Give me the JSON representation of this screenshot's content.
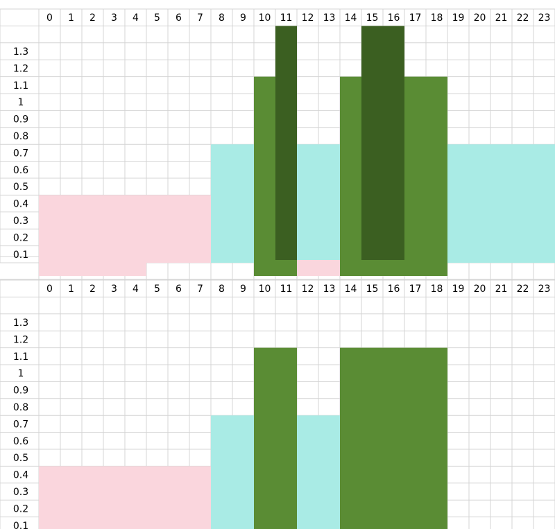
{
  "colors": {
    "pink": "#fad6dd",
    "cyan": "#a9ebe5",
    "green": "#5a8c34",
    "darkgreen": "#3b5f21",
    "grid": "#d4d4d4"
  },
  "chart_data": [
    {
      "type": "bar",
      "x": [
        0,
        1,
        2,
        3,
        4,
        5,
        6,
        7,
        8,
        9,
        10,
        11,
        12,
        13,
        14,
        15,
        16,
        17,
        18,
        19,
        20,
        21,
        22,
        23
      ],
      "x_tick_labels": [
        "0",
        "1",
        "2",
        "3",
        "4",
        "5",
        "6",
        "7",
        "8",
        "9",
        "10",
        "11",
        "12",
        "13",
        "14",
        "15",
        "16",
        "17",
        "18",
        "19",
        "20",
        "21",
        "22",
        "23"
      ],
      "y_tick_labels": [
        "0.1",
        "0.2",
        "0.3",
        "0.4",
        "0.5",
        "0.6",
        "0.7",
        "0.8",
        "0.9",
        "1",
        "1.1",
        "1.2",
        "1.3"
      ],
      "ylim": [
        0,
        1.4
      ],
      "grid": true,
      "segments": [
        {
          "start": 0,
          "end": 8,
          "value": 0.4,
          "color": "pink"
        },
        {
          "start": 8,
          "end": 10,
          "value": 0.7,
          "color": "cyan"
        },
        {
          "start": 10,
          "end": 11,
          "value": 1.1,
          "color": "green"
        },
        {
          "start": 11,
          "end": 12,
          "value": 1.4,
          "color": "darkgreen"
        },
        {
          "start": 12,
          "end": 14,
          "value": 0.7,
          "color": "cyan"
        },
        {
          "start": 14,
          "end": 15,
          "value": 1.1,
          "color": "green"
        },
        {
          "start": 15,
          "end": 17,
          "value": 1.4,
          "color": "darkgreen"
        },
        {
          "start": 17,
          "end": 19,
          "value": 1.1,
          "color": "green"
        },
        {
          "start": 19,
          "end": 24,
          "value": 0.7,
          "color": "cyan"
        }
      ],
      "strip": [
        {
          "start": 0,
          "end": 5,
          "color": "pink"
        },
        {
          "start": 10,
          "end": 12,
          "color": "green"
        },
        {
          "start": 12,
          "end": 14,
          "color": "pink"
        },
        {
          "start": 14,
          "end": 19,
          "color": "green"
        }
      ]
    },
    {
      "type": "bar",
      "x": [
        0,
        1,
        2,
        3,
        4,
        5,
        6,
        7,
        8,
        9,
        10,
        11,
        12,
        13,
        14,
        15,
        16,
        17,
        18,
        19,
        20,
        21,
        22,
        23
      ],
      "x_tick_labels": [
        "0",
        "1",
        "2",
        "3",
        "4",
        "5",
        "6",
        "7",
        "8",
        "9",
        "10",
        "11",
        "12",
        "13",
        "14",
        "15",
        "16",
        "17",
        "18",
        "19",
        "20",
        "21",
        "22",
        "23"
      ],
      "y_tick_labels": [
        "0.1",
        "0.2",
        "0.3",
        "0.4",
        "0.5",
        "0.6",
        "0.7",
        "0.8",
        "0.9",
        "1",
        "1.1",
        "1.2",
        "1.3"
      ],
      "ylim": [
        0,
        1.4
      ],
      "grid": true,
      "segments": [
        {
          "start": 0,
          "end": 8,
          "value": 0.4,
          "color": "pink"
        },
        {
          "start": 8,
          "end": 10,
          "value": 0.7,
          "color": "cyan"
        },
        {
          "start": 10,
          "end": 12,
          "value": 1.1,
          "color": "green"
        },
        {
          "start": 12,
          "end": 14,
          "value": 0.7,
          "color": "cyan"
        },
        {
          "start": 14,
          "end": 19,
          "value": 1.1,
          "color": "green"
        }
      ]
    }
  ]
}
